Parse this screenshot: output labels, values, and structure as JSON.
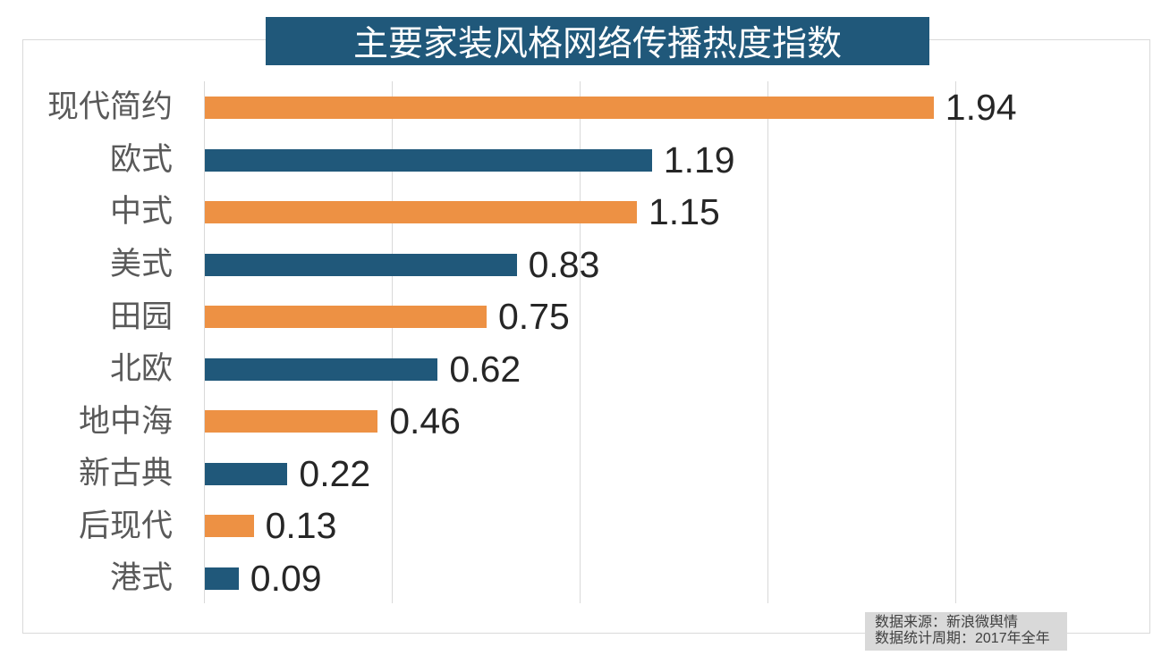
{
  "chart_data": {
    "type": "bar",
    "orientation": "horizontal",
    "title": "主要家装风格网络传播热度指数",
    "categories": [
      "现代简约",
      "欧式",
      "中式",
      "美式",
      "田园",
      "北欧",
      "地中海",
      "新古典",
      "后现代",
      "港式"
    ],
    "values": [
      1.94,
      1.19,
      1.15,
      0.83,
      0.75,
      0.62,
      0.46,
      0.22,
      0.13,
      0.09
    ],
    "value_labels": [
      "1.94",
      "1.19",
      "1.15",
      "0.83",
      "0.75",
      "0.62",
      "0.46",
      "0.22",
      "0.13",
      "0.09"
    ],
    "axis": {
      "min": 0,
      "grid_step": 0.5,
      "grid_max": 2.0
    },
    "grid": true,
    "legend": false,
    "colors": {
      "bar_odd": "#ED9144",
      "bar_even": "#20587A",
      "title_bg": "#20587A",
      "title_text": "#FFFFFF",
      "label_text": "#595959",
      "value_text": "#262626",
      "grid_line": "#D9D9D9",
      "footer_bg": "#D9D9D9",
      "footer_text": "#404040"
    }
  },
  "footer": {
    "line1": "数据来源：新浪微舆情",
    "line2": "数据统计周期：2017年全年"
  }
}
